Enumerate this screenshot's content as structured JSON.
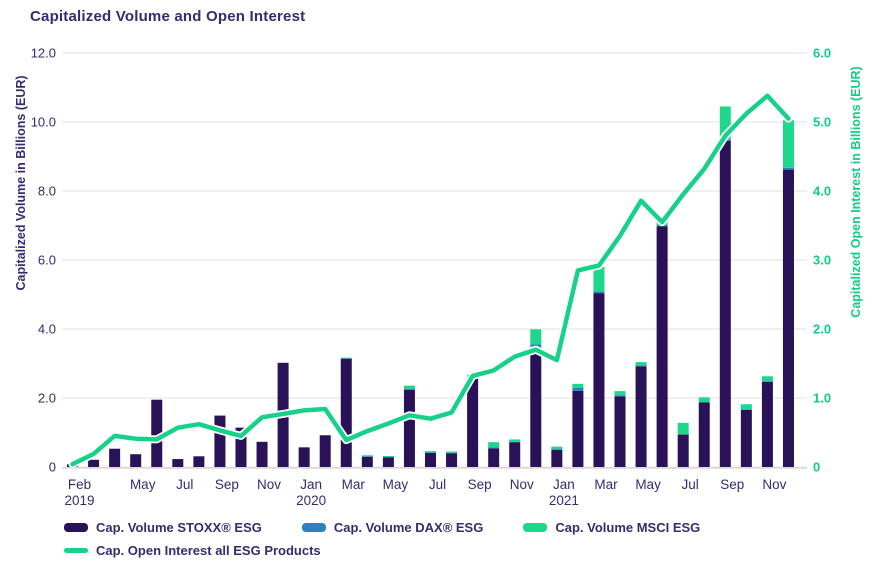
{
  "title": "Capitalized Volume and Open Interest",
  "colors": {
    "stoxx_purple": "#291257",
    "dax_blue": "#2e80c6",
    "msci_green": "#1ed78b",
    "line_green": "#17d18a",
    "text_purple": "#342c72",
    "text_green": "#0fce85",
    "gridline": "#e7e7e7",
    "axis_line": "#d9d9d9"
  },
  "axes": {
    "left": {
      "title": "Capitalized Volume in Billions (EUR)",
      "tick_labels": [
        "0",
        "2.0",
        "4.0",
        "6.0",
        "8.0",
        "10.0",
        "12.0"
      ],
      "tick_values": [
        0,
        2,
        4,
        6,
        8,
        10,
        12
      ],
      "max": 12
    },
    "right": {
      "title": "Capitalized Open Interest in Billions (EUR)",
      "tick_labels": [
        "0",
        "1.0",
        "2.0",
        "3.0",
        "4.0",
        "5.0",
        "6.0"
      ],
      "tick_values": [
        0,
        1,
        2,
        3,
        4,
        5,
        6
      ],
      "max": 6
    }
  },
  "legend": {
    "items": [
      {
        "label": "Cap. Volume STOXX® ESG",
        "color": "#291257",
        "type": "bar"
      },
      {
        "label": "Cap. Volume DAX® ESG",
        "color": "#2e80c6",
        "type": "bar"
      },
      {
        "label": "Cap. Volume MSCI ESG",
        "color": "#1ed78b",
        "type": "bar"
      },
      {
        "label": "Cap. Open Interest all ESG Products",
        "color": "#17d18a",
        "type": "line"
      }
    ]
  },
  "chart_data": {
    "type": "bar",
    "subtype": "stacked bars with overlay line on secondary axis",
    "categories": [
      "Feb 2019",
      "Mar 2019",
      "Apr 2019",
      "May 2019",
      "Jun 2019",
      "Jul 2019",
      "Aug 2019",
      "Sep 2019",
      "Oct 2019",
      "Nov 2019",
      "Dec 2019",
      "Jan 2020",
      "Feb 2020",
      "Mar 2020",
      "Apr 2020",
      "May 2020",
      "Jun 2020",
      "Jul 2020",
      "Aug 2020",
      "Sep 2020",
      "Oct 2020",
      "Nov 2020",
      "Dec 2020",
      "Jan 2021",
      "Feb 2021",
      "Mar 2021",
      "Apr 2021",
      "May 2021",
      "Jun 2021",
      "Jul 2021",
      "Aug 2021",
      "Sep 2021",
      "Oct 2021",
      "Nov 2021",
      "Dec 2021"
    ],
    "series": [
      {
        "name": "Cap. Volume STOXX® ESG",
        "type": "bar",
        "axis": "left",
        "color": "#291257",
        "values": [
          0.08,
          0.21,
          0.53,
          0.37,
          1.95,
          0.23,
          0.31,
          1.49,
          1.14,
          0.73,
          3.02,
          0.57,
          0.92,
          3.14,
          0.3,
          0.28,
          2.24,
          0.41,
          0.4,
          2.56,
          0.54,
          0.71,
          3.43,
          0.5,
          2.21,
          5.04,
          2.05,
          2.92,
          6.98,
          0.94,
          1.87,
          9.45,
          1.66,
          2.47,
          8.62
        ]
      },
      {
        "name": "Cap. Volume DAX® ESG",
        "type": "bar",
        "axis": "left",
        "color": "#2e80c6",
        "values": [
          0,
          0,
          0,
          0,
          0,
          0,
          0,
          0,
          0,
          0,
          0,
          0,
          0,
          0.01,
          0.01,
          0.01,
          0.02,
          0.01,
          0.01,
          0.03,
          0.03,
          0.02,
          0.12,
          0.02,
          0.08,
          0.05,
          0.03,
          0.02,
          0.02,
          0.01,
          0.01,
          0.05,
          0.01,
          0.02,
          0.05
        ]
      },
      {
        "name": "Cap. Volume MSCI ESG",
        "type": "bar",
        "axis": "left",
        "color": "#1ed78b",
        "values": [
          0,
          0,
          0,
          0,
          0,
          0,
          0,
          0,
          0,
          0,
          0,
          0,
          0,
          0.02,
          0.03,
          0.03,
          0.1,
          0.04,
          0.04,
          0.09,
          0.15,
          0.07,
          0.44,
          0.07,
          0.12,
          0.71,
          0.12,
          0.1,
          0.1,
          0.33,
          0.14,
          0.95,
          0.15,
          0.14,
          1.38
        ]
      },
      {
        "name": "Cap. Open Interest all ESG Products",
        "type": "line",
        "axis": "right",
        "color": "#17d18a",
        "values": [
          0.04,
          0.19,
          0.45,
          0.41,
          0.4,
          0.57,
          0.62,
          0.53,
          0.45,
          0.72,
          0.77,
          0.82,
          0.84,
          0.39,
          0.52,
          0.63,
          0.75,
          0.7,
          0.79,
          1.32,
          1.4,
          1.6,
          1.7,
          1.55,
          2.85,
          2.92,
          3.35,
          3.86,
          3.55,
          3.95,
          4.32,
          4.8,
          5.12,
          5.38,
          5.05
        ]
      }
    ],
    "x_ticks": [
      {
        "index": 0,
        "label": "Feb",
        "year": "2019"
      },
      {
        "index": 3,
        "label": "May"
      },
      {
        "index": 5,
        "label": "Jul"
      },
      {
        "index": 7,
        "label": "Sep"
      },
      {
        "index": 9,
        "label": "Nov"
      },
      {
        "index": 11,
        "label": "Jan",
        "year": "2020"
      },
      {
        "index": 13,
        "label": "Mar"
      },
      {
        "index": 15,
        "label": "May"
      },
      {
        "index": 17,
        "label": "Jul"
      },
      {
        "index": 19,
        "label": "Sep"
      },
      {
        "index": 21,
        "label": "Nov"
      },
      {
        "index": 23,
        "label": "Jan",
        "year": "2021"
      },
      {
        "index": 25,
        "label": "Mar"
      },
      {
        "index": 27,
        "label": "May"
      },
      {
        "index": 29,
        "label": "Jul"
      },
      {
        "index": 31,
        "label": "Sep"
      },
      {
        "index": 33,
        "label": "Nov"
      }
    ],
    "ylim_left": [
      0,
      12
    ],
    "ylim_right": [
      0,
      6
    ],
    "grid": true,
    "legend_position": "bottom"
  }
}
